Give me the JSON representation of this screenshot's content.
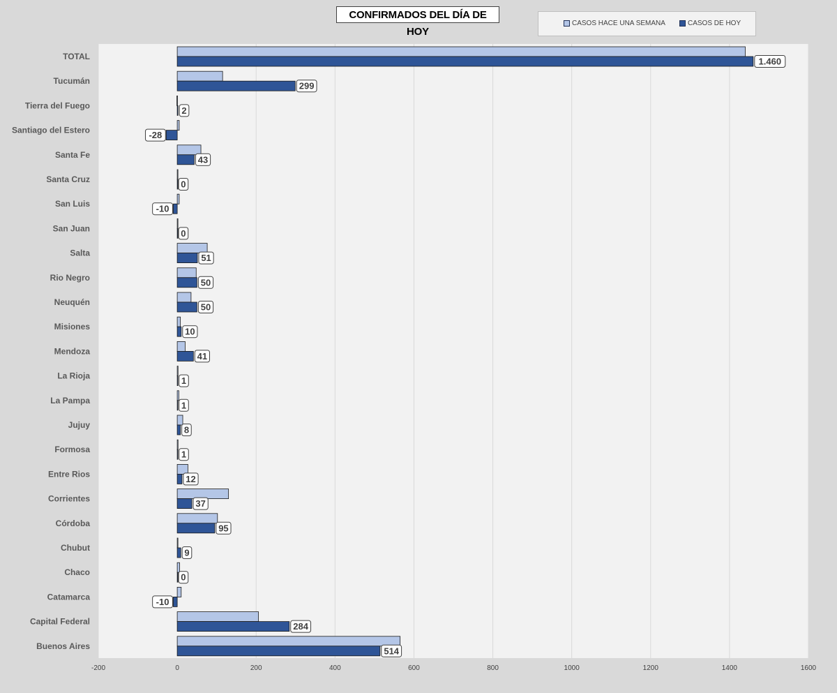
{
  "chart_data": {
    "type": "bar",
    "orientation": "horizontal",
    "title": "CONFIRMADOS DEL DÍA DE HOY",
    "categories": [
      "TOTAL",
      "Tucumán",
      "Tierra del Fuego",
      "Santiago del Estero",
      "Santa Fe",
      "Santa Cruz",
      "San Luis",
      "San Juan",
      "Salta",
      "Rio Negro",
      "Neuquén",
      "Misiones",
      "Mendoza",
      "La Rioja",
      "La Pampa",
      "Jujuy",
      "Formosa",
      "Entre Rios",
      "Corrientes",
      "Córdoba",
      "Chubut",
      "Chaco",
      "Catamarca",
      "Capital Federal",
      "Buenos Aires"
    ],
    "series": [
      {
        "name": "CASOS HACE UNA SEMANA",
        "color": "#b4c6e7",
        "values": [
          1440,
          115,
          -1,
          5,
          60,
          0,
          5,
          1,
          76,
          48,
          35,
          8,
          20,
          2,
          4,
          14,
          2,
          27,
          130,
          102,
          0,
          6,
          10,
          206,
          565
        ]
      },
      {
        "name": "CASOS DE HOY",
        "color": "#2f5597",
        "values": [
          1460,
          299,
          2,
          -28,
          43,
          0,
          -10,
          0,
          51,
          50,
          50,
          10,
          41,
          1,
          1,
          8,
          1,
          12,
          37,
          95,
          9,
          0,
          -10,
          284,
          514
        ],
        "labels": [
          "1.460",
          "299",
          "2",
          "-28",
          "43",
          "0",
          "-10",
          "0",
          "51",
          "50",
          "50",
          "10",
          "41",
          "1",
          "1",
          "8",
          "1",
          "12",
          "37",
          "95",
          "9",
          "0",
          "-10",
          "284",
          "514"
        ]
      }
    ],
    "xlim": [
      -200,
      1600
    ],
    "xticks": [
      "-200",
      "0",
      "200",
      "400",
      "600",
      "800",
      "1000",
      "1200",
      "1400",
      "1600"
    ],
    "grid": true,
    "legend_position": "top-right",
    "xlabel": "",
    "ylabel": ""
  }
}
